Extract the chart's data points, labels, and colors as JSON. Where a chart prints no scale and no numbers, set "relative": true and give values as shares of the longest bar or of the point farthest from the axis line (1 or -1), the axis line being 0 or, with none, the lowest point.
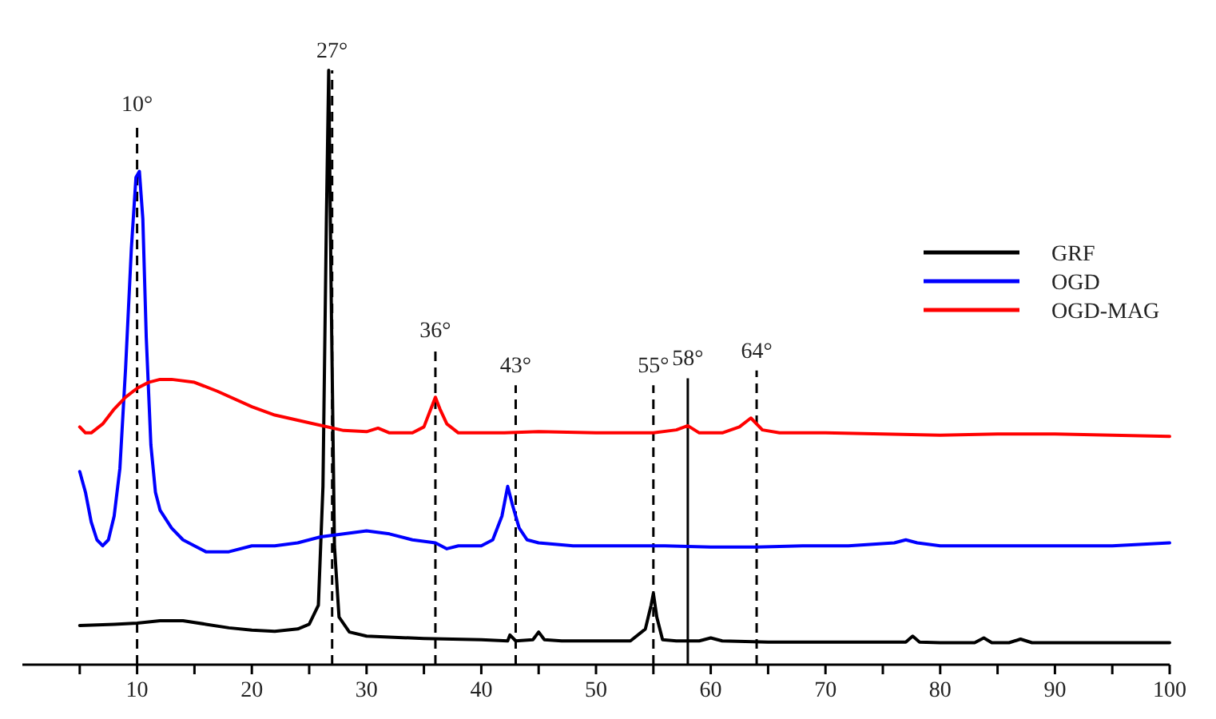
{
  "chart_data": {
    "type": "line",
    "relative": true,
    "xlim": [
      0,
      100
    ],
    "xticks": [
      {
        "value": 5,
        "label": null
      },
      10,
      {
        "value": 15,
        "label": null
      },
      20,
      {
        "value": 25,
        "label": null
      },
      30,
      {
        "value": 35,
        "label": null
      },
      40,
      {
        "value": 45,
        "label": null
      },
      50,
      {
        "value": 55,
        "label": null
      },
      60,
      {
        "value": 65,
        "label": null
      },
      70,
      {
        "value": 75,
        "label": null
      },
      80,
      {
        "value": 85,
        "label": null
      },
      90,
      {
        "value": 95,
        "label": null
      },
      100
    ],
    "grid": false,
    "legend": "right",
    "line_style": "solid",
    "series": [
      {
        "name": "GRF",
        "color": "#000000",
        "x": [
          5,
          8,
          10,
          12,
          14,
          16,
          18,
          20,
          22,
          24,
          25,
          25.8,
          26.2,
          26.5,
          26.7,
          26.9,
          27.2,
          27.6,
          28.5,
          30,
          35,
          40,
          42.3,
          42.5,
          43,
          44.5,
          45,
          45.5,
          47,
          50,
          53,
          54.3,
          54.8,
          55,
          55.3,
          55.8,
          57,
          59,
          60,
          61,
          65,
          70,
          77,
          77.6,
          78.2,
          80,
          83,
          83.8,
          84.5,
          86,
          87,
          88,
          92,
          96,
          100
        ],
        "values": [
          0.066,
          0.068,
          0.07,
          0.074,
          0.074,
          0.068,
          0.062,
          0.058,
          0.056,
          0.06,
          0.068,
          0.1,
          0.3,
          0.75,
          1.0,
          0.65,
          0.2,
          0.08,
          0.055,
          0.048,
          0.044,
          0.042,
          0.04,
          0.05,
          0.04,
          0.042,
          0.055,
          0.042,
          0.04,
          0.04,
          0.04,
          0.06,
          0.1,
          0.12,
          0.08,
          0.042,
          0.04,
          0.04,
          0.045,
          0.04,
          0.038,
          0.038,
          0.038,
          0.048,
          0.038,
          0.037,
          0.037,
          0.045,
          0.037,
          0.037,
          0.043,
          0.037,
          0.037,
          0.037,
          0.037
        ]
      },
      {
        "name": "OGD",
        "color": "#0000ff",
        "x": [
          5,
          5.5,
          6,
          6.5,
          7,
          7.5,
          8,
          8.5,
          9,
          9.5,
          9.9,
          10.2,
          10.5,
          10.8,
          11.2,
          11.6,
          12,
          13,
          14,
          15,
          16,
          18,
          20,
          22,
          24,
          26,
          28,
          30,
          32,
          34,
          36,
          37,
          38,
          40,
          41,
          41.8,
          42.3,
          42.7,
          43.3,
          44,
          45,
          48,
          52,
          56,
          60,
          64,
          68,
          72,
          76,
          77,
          78,
          80,
          85,
          90,
          95,
          100
        ],
        "values": [
          0.325,
          0.29,
          0.24,
          0.21,
          0.2,
          0.21,
          0.25,
          0.33,
          0.5,
          0.7,
          0.82,
          0.83,
          0.75,
          0.55,
          0.37,
          0.29,
          0.26,
          0.23,
          0.21,
          0.2,
          0.19,
          0.19,
          0.2,
          0.2,
          0.205,
          0.215,
          0.22,
          0.225,
          0.22,
          0.21,
          0.205,
          0.195,
          0.2,
          0.2,
          0.21,
          0.25,
          0.3,
          0.27,
          0.23,
          0.21,
          0.205,
          0.2,
          0.2,
          0.2,
          0.198,
          0.198,
          0.2,
          0.2,
          0.205,
          0.21,
          0.205,
          0.2,
          0.2,
          0.2,
          0.2,
          0.205
        ]
      },
      {
        "name": "OGD-MAG",
        "color": "#ff0000",
        "x": [
          5,
          5.5,
          6,
          7,
          8,
          9,
          10,
          11,
          12,
          13,
          15,
          17,
          20,
          22,
          25,
          28,
          30,
          31,
          32,
          34,
          35,
          35.6,
          36,
          36.4,
          37,
          38,
          40,
          42,
          45,
          50,
          55,
          57,
          58,
          59,
          61,
          62.5,
          63.5,
          64.5,
          66,
          70,
          75,
          80,
          85,
          90,
          95,
          100
        ],
        "values": [
          0.4,
          0.39,
          0.39,
          0.405,
          0.43,
          0.45,
          0.465,
          0.475,
          0.48,
          0.48,
          0.475,
          0.46,
          0.434,
          0.42,
          0.407,
          0.394,
          0.392,
          0.398,
          0.39,
          0.39,
          0.4,
          0.43,
          0.45,
          0.43,
          0.405,
          0.39,
          0.39,
          0.39,
          0.392,
          0.39,
          0.39,
          0.395,
          0.402,
          0.39,
          0.39,
          0.4,
          0.415,
          0.395,
          0.39,
          0.39,
          0.388,
          0.386,
          0.388,
          0.388,
          0.386,
          0.384
        ]
      }
    ],
    "ref_lines": [
      {
        "axis": "x",
        "value": 10,
        "label": "10°",
        "line_style": "dashed",
        "color": "#000000"
      },
      {
        "axis": "x",
        "value": 27,
        "label": "27°",
        "line_style": "dashed",
        "color": "#000000"
      },
      {
        "axis": "x",
        "value": 36,
        "label": "36°",
        "line_style": "dashed",
        "color": "#000000"
      },
      {
        "axis": "x",
        "value": 43,
        "label": "43°",
        "line_style": "dashed",
        "color": "#000000"
      },
      {
        "axis": "x",
        "value": 55,
        "label": "55°",
        "line_style": "dashed",
        "color": "#000000"
      },
      {
        "axis": "x",
        "value": 58,
        "label": "58°",
        "line_style": "solid",
        "color": "#000000"
      },
      {
        "axis": "x",
        "value": 64,
        "label": "64°",
        "line_style": "dashed",
        "color": "#000000"
      }
    ]
  }
}
